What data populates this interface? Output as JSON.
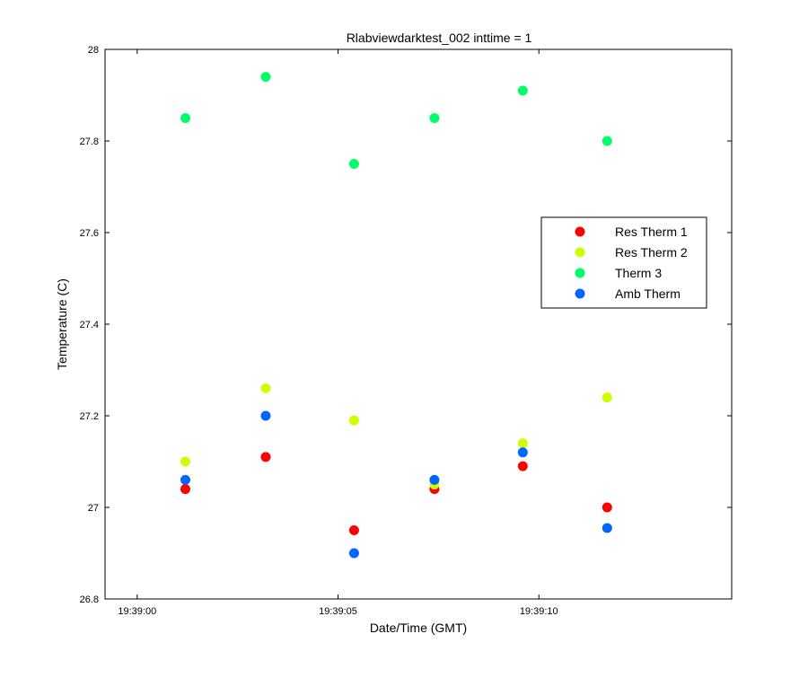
{
  "chart_data": {
    "type": "scatter",
    "title": "Rlabviewdarktest_002 inttime = 1",
    "xlabel": "Date/Time (GMT)",
    "ylabel": "Temperature (C)",
    "x_ticks": [
      "19:39:00",
      "19:39:05",
      "19:39:10"
    ],
    "x_tick_values": [
      0,
      5,
      10
    ],
    "xlim": [
      -0.8,
      14.8
    ],
    "ylim": [
      26.8,
      28.0
    ],
    "y_ticks": [
      26.8,
      27.0,
      27.2,
      27.4,
      27.6,
      27.8,
      28.0
    ],
    "y_tick_labels": [
      "26.8",
      "27",
      "27.2",
      "27.4",
      "27.6",
      "27.8",
      "28"
    ],
    "x": [
      "19:39:01.2",
      "19:39:03.2",
      "19:39:05.4",
      "19:39:07.4",
      "19:39:09.6",
      "19:39:11.7"
    ],
    "x_seconds": [
      1.2,
      3.2,
      5.4,
      7.4,
      9.6,
      11.7
    ],
    "grid": false,
    "legend_position": "right",
    "series": [
      {
        "name": "Res Therm 1",
        "color": "#ff0000",
        "values": [
          27.04,
          27.11,
          26.95,
          27.04,
          27.09,
          27.0
        ]
      },
      {
        "name": "Res Therm 2",
        "color": "#ccff00",
        "values": [
          27.1,
          27.26,
          27.19,
          27.05,
          27.14,
          27.24
        ]
      },
      {
        "name": "Therm 3",
        "color": "#00ff66",
        "values": [
          27.85,
          27.94,
          27.75,
          27.85,
          27.91,
          27.8
        ]
      },
      {
        "name": "Amb Therm",
        "color": "#0066ff",
        "values": [
          27.06,
          27.2,
          26.9,
          27.06,
          27.12,
          26.955
        ]
      }
    ]
  }
}
